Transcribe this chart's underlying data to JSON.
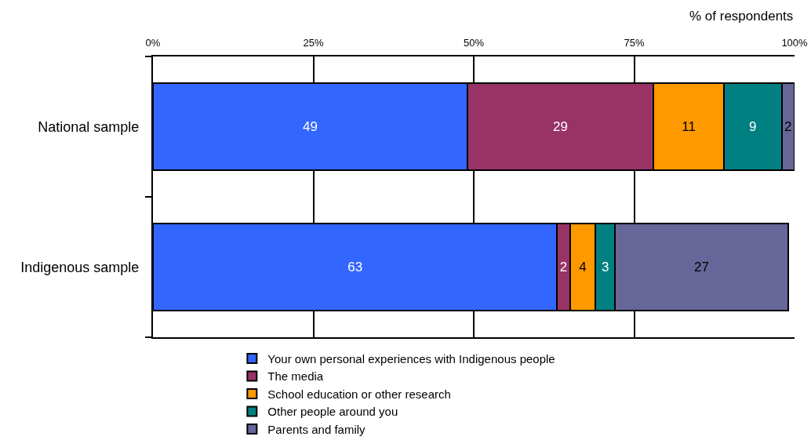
{
  "chart_data": {
    "type": "bar",
    "orientation": "horizontal",
    "stacked": true,
    "xlabel": "% of respondents",
    "categories": [
      "National sample",
      "Indigenous sample"
    ],
    "series": [
      {
        "name": "Your own personal experiences with Indigenous people",
        "color": "#3366ff",
        "values": [
          49,
          63
        ]
      },
      {
        "name": "The media",
        "color": "#993366",
        "values": [
          29,
          2
        ]
      },
      {
        "name": "School education or other research",
        "color": "#ff9900",
        "values": [
          11,
          4
        ]
      },
      {
        "name": "Other people around you",
        "color": "#008080",
        "values": [
          9,
          3
        ]
      },
      {
        "name": "Parents and family",
        "color": "#666699",
        "values": [
          2,
          27
        ]
      }
    ],
    "xlim": [
      0,
      100
    ],
    "xticks": [
      {
        "value": 0,
        "label": "0%"
      },
      {
        "value": 25,
        "label": "25%"
      },
      {
        "value": 50,
        "label": "50%"
      },
      {
        "value": 75,
        "label": "75%"
      },
      {
        "value": 100,
        "label": "100%"
      }
    ],
    "grid": "x",
    "legend": "bottom",
    "data_labels": true
  }
}
